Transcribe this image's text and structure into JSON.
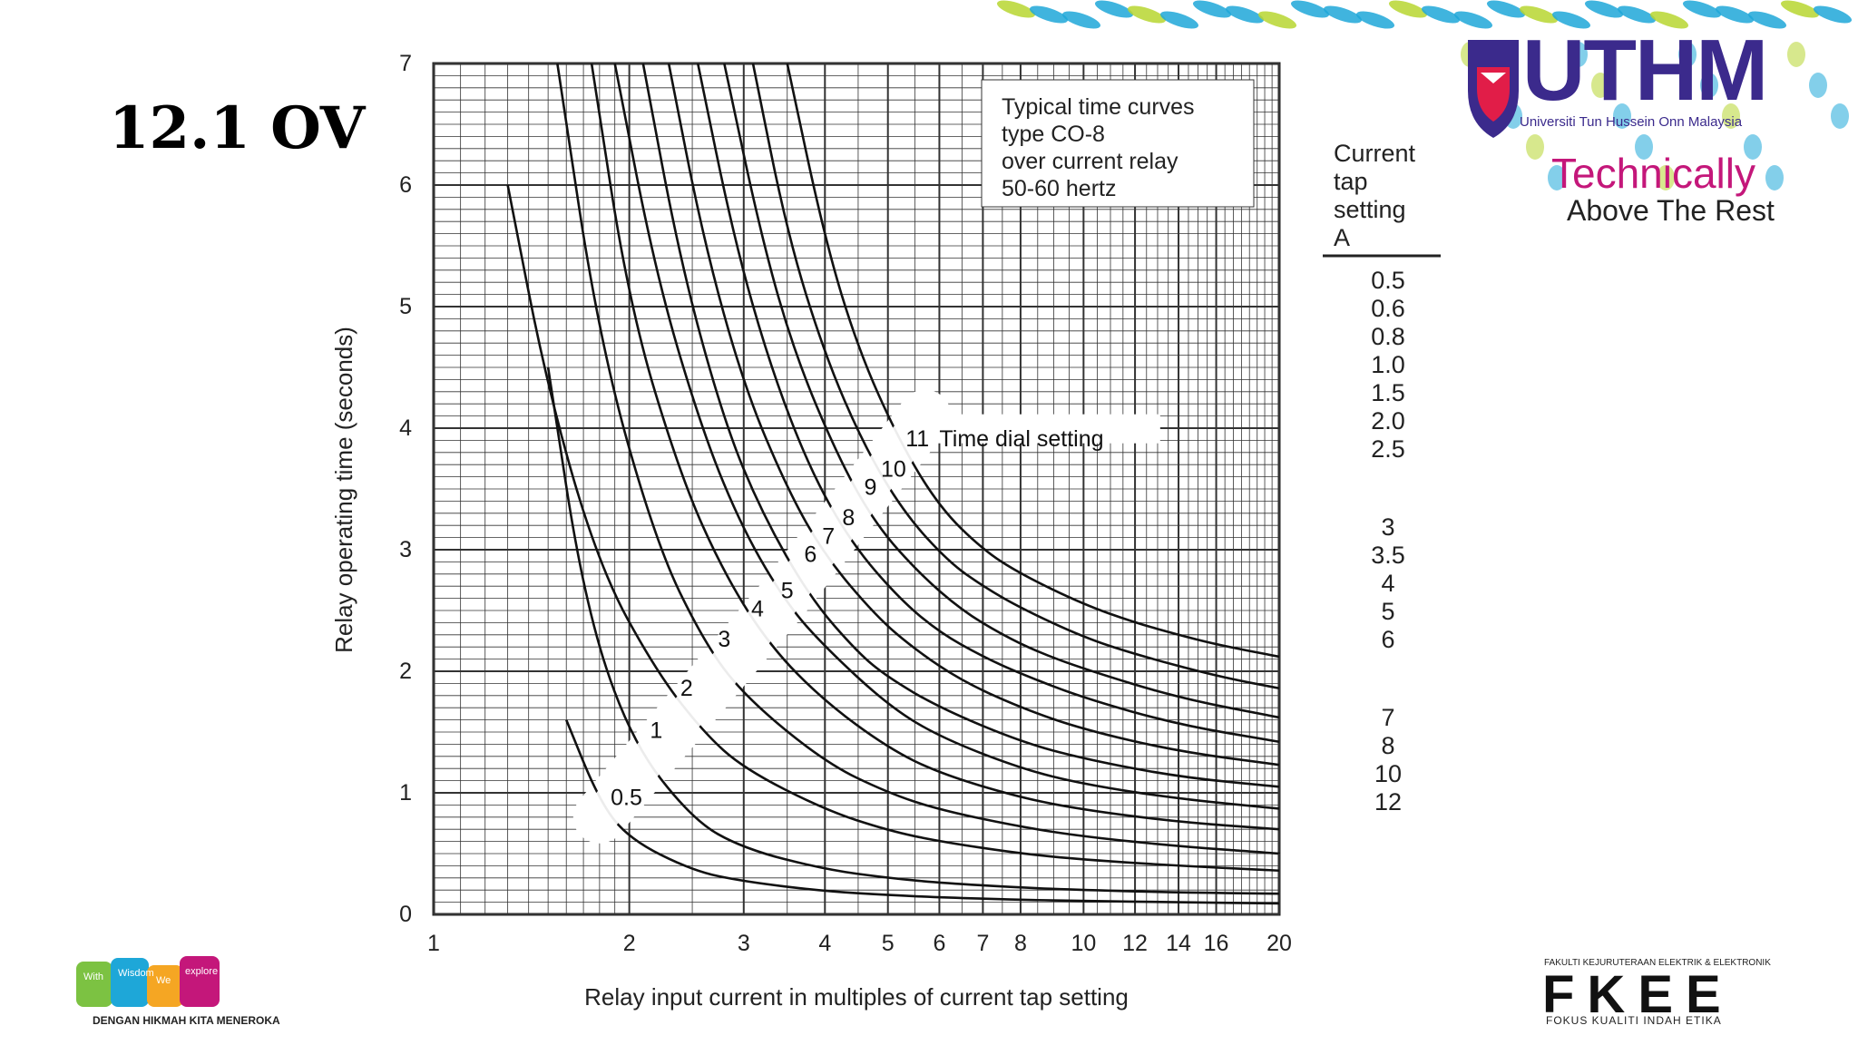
{
  "slide": {
    "title": "12.1 OV"
  },
  "branding": {
    "uthm_word": "UTHM",
    "uthm_subtitle": "Universiti Tun Hussein Onn Malaysia",
    "tagline_line1": "Technically",
    "tagline_line2": "Above The Rest",
    "fkee_top": "FAKULTI KEJURUTERAAN ELEKTRIK & ELEKTRONIK",
    "fkee_word": "FKEE",
    "fkee_bottom": "FOKUS KUALITI INDAH ETIKA",
    "wwe_tagline": "DENGAN HIKMAH KITA MENEROKA",
    "wwe_words": [
      "With",
      "Wisdom",
      "We",
      "explore"
    ],
    "colors": {
      "uthm": "#3b2a8c",
      "tagline": "#c4177a",
      "wave_blue": "#1ea7d8",
      "wave_green": "#b7d630"
    }
  },
  "chart_data": {
    "type": "line",
    "title": "",
    "annotation": [
      "Typical time curves",
      "type CO-8",
      "over current relay",
      "50-60 hertz"
    ],
    "xlabel": "Relay input current in multiples of current tap setting",
    "ylabel": "Relay operating time (seconds)",
    "xscale": "log",
    "xlim": [
      1,
      20
    ],
    "ylim": [
      0,
      7
    ],
    "xticks": [
      1,
      2,
      3,
      4,
      5,
      6,
      7,
      8,
      10,
      12,
      14,
      16,
      20
    ],
    "yticks": [
      0,
      1,
      2,
      3,
      4,
      5,
      6,
      7
    ],
    "grid": true,
    "series_label": "Time dial setting",
    "series": [
      {
        "name": "0.5",
        "x": [
          1.6,
          1.8,
          2,
          2.5,
          3,
          4,
          5,
          6,
          8,
          10,
          14,
          20
        ],
        "y": [
          1.6,
          0.93,
          0.62,
          0.36,
          0.27,
          0.19,
          0.16,
          0.14,
          0.12,
          0.11,
          0.1,
          0.09
        ]
      },
      {
        "name": "1",
        "x": [
          1.5,
          1.7,
          2,
          2.5,
          3,
          4,
          5,
          6,
          8,
          10,
          14,
          20
        ],
        "y": [
          4.5,
          2.6,
          1.45,
          0.78,
          0.54,
          0.37,
          0.3,
          0.26,
          0.22,
          0.2,
          0.18,
          0.17
        ]
      },
      {
        "name": "2",
        "x": [
          1.3,
          1.5,
          1.8,
          2.2,
          2.6,
          3,
          4,
          5,
          6,
          8,
          10,
          14,
          20
        ],
        "y": [
          6,
          4.3,
          2.85,
          2.0,
          1.5,
          1.2,
          0.86,
          0.69,
          0.6,
          0.5,
          0.45,
          0.4,
          0.36
        ]
      },
      {
        "name": "3",
        "x": [
          1.55,
          1.8,
          2.2,
          2.6,
          3,
          4,
          5,
          6,
          8,
          10,
          14,
          20
        ],
        "y": [
          7,
          4.7,
          3.05,
          2.25,
          1.8,
          1.25,
          1.0,
          0.86,
          0.72,
          0.64,
          0.56,
          0.5
        ]
      },
      {
        "name": "4",
        "x": [
          1.75,
          2,
          2.4,
          2.8,
          3.3,
          4,
          5,
          6,
          8,
          10,
          14,
          20
        ],
        "y": [
          7,
          5.0,
          3.6,
          2.8,
          2.2,
          1.75,
          1.37,
          1.16,
          0.96,
          0.86,
          0.76,
          0.7
        ]
      },
      {
        "name": "5",
        "x": [
          1.9,
          2.2,
          2.6,
          3,
          3.5,
          4,
          5,
          6,
          8,
          10,
          14,
          20
        ],
        "y": [
          7,
          5.25,
          3.95,
          3.15,
          2.55,
          2.2,
          1.72,
          1.46,
          1.2,
          1.07,
          0.95,
          0.87
        ]
      },
      {
        "name": "6",
        "x": [
          2.1,
          2.4,
          2.8,
          3.2,
          3.8,
          4.5,
          5,
          6,
          8,
          10,
          14,
          20
        ],
        "y": [
          7,
          5.35,
          4.05,
          3.3,
          2.6,
          2.15,
          1.95,
          1.7,
          1.42,
          1.28,
          1.13,
          1.05
        ]
      },
      {
        "name": "7",
        "x": [
          2.3,
          2.6,
          3,
          3.5,
          4,
          4.8,
          5.5,
          6.5,
          8,
          10,
          14,
          20
        ],
        "y": [
          7,
          5.55,
          4.35,
          3.5,
          2.95,
          2.45,
          2.18,
          1.92,
          1.7,
          1.52,
          1.34,
          1.23
        ]
      },
      {
        "name": "8",
        "x": [
          2.55,
          2.9,
          3.3,
          3.8,
          4.4,
          5.2,
          6,
          7,
          8,
          10,
          14,
          20
        ],
        "y": [
          7,
          5.55,
          4.5,
          3.65,
          3.05,
          2.6,
          2.32,
          2.12,
          1.98,
          1.78,
          1.56,
          1.42
        ]
      },
      {
        "name": "9",
        "x": [
          2.8,
          3.2,
          3.6,
          4.2,
          4.8,
          5.6,
          6.5,
          7.5,
          8.5,
          10,
          14,
          20
        ],
        "y": [
          7,
          5.55,
          4.6,
          3.75,
          3.2,
          2.8,
          2.5,
          2.3,
          2.16,
          2.02,
          1.78,
          1.62
        ]
      },
      {
        "name": "10",
        "x": [
          3.1,
          3.5,
          4,
          4.6,
          5.3,
          6.2,
          7,
          8,
          10,
          12,
          16,
          20
        ],
        "y": [
          7,
          5.6,
          4.6,
          3.85,
          3.3,
          2.9,
          2.7,
          2.52,
          2.28,
          2.14,
          1.96,
          1.86
        ]
      },
      {
        "name": "11",
        "x": [
          3.5,
          4,
          4.5,
          5.2,
          6,
          7,
          8,
          10,
          12,
          14,
          16,
          20
        ],
        "y": [
          7,
          5.55,
          4.65,
          3.9,
          3.35,
          3.0,
          2.8,
          2.55,
          2.4,
          2.3,
          2.22,
          2.12
        ]
      }
    ],
    "legend": {
      "title": [
        "Current",
        "tap",
        "setting",
        "A"
      ],
      "items": [
        "0.5",
        "0.6",
        "0.8",
        "1.0",
        "1.5",
        "2.0",
        "2.5",
        "3",
        "3.5",
        "4",
        "5",
        "6",
        "7",
        "8",
        "10",
        "12"
      ]
    }
  }
}
